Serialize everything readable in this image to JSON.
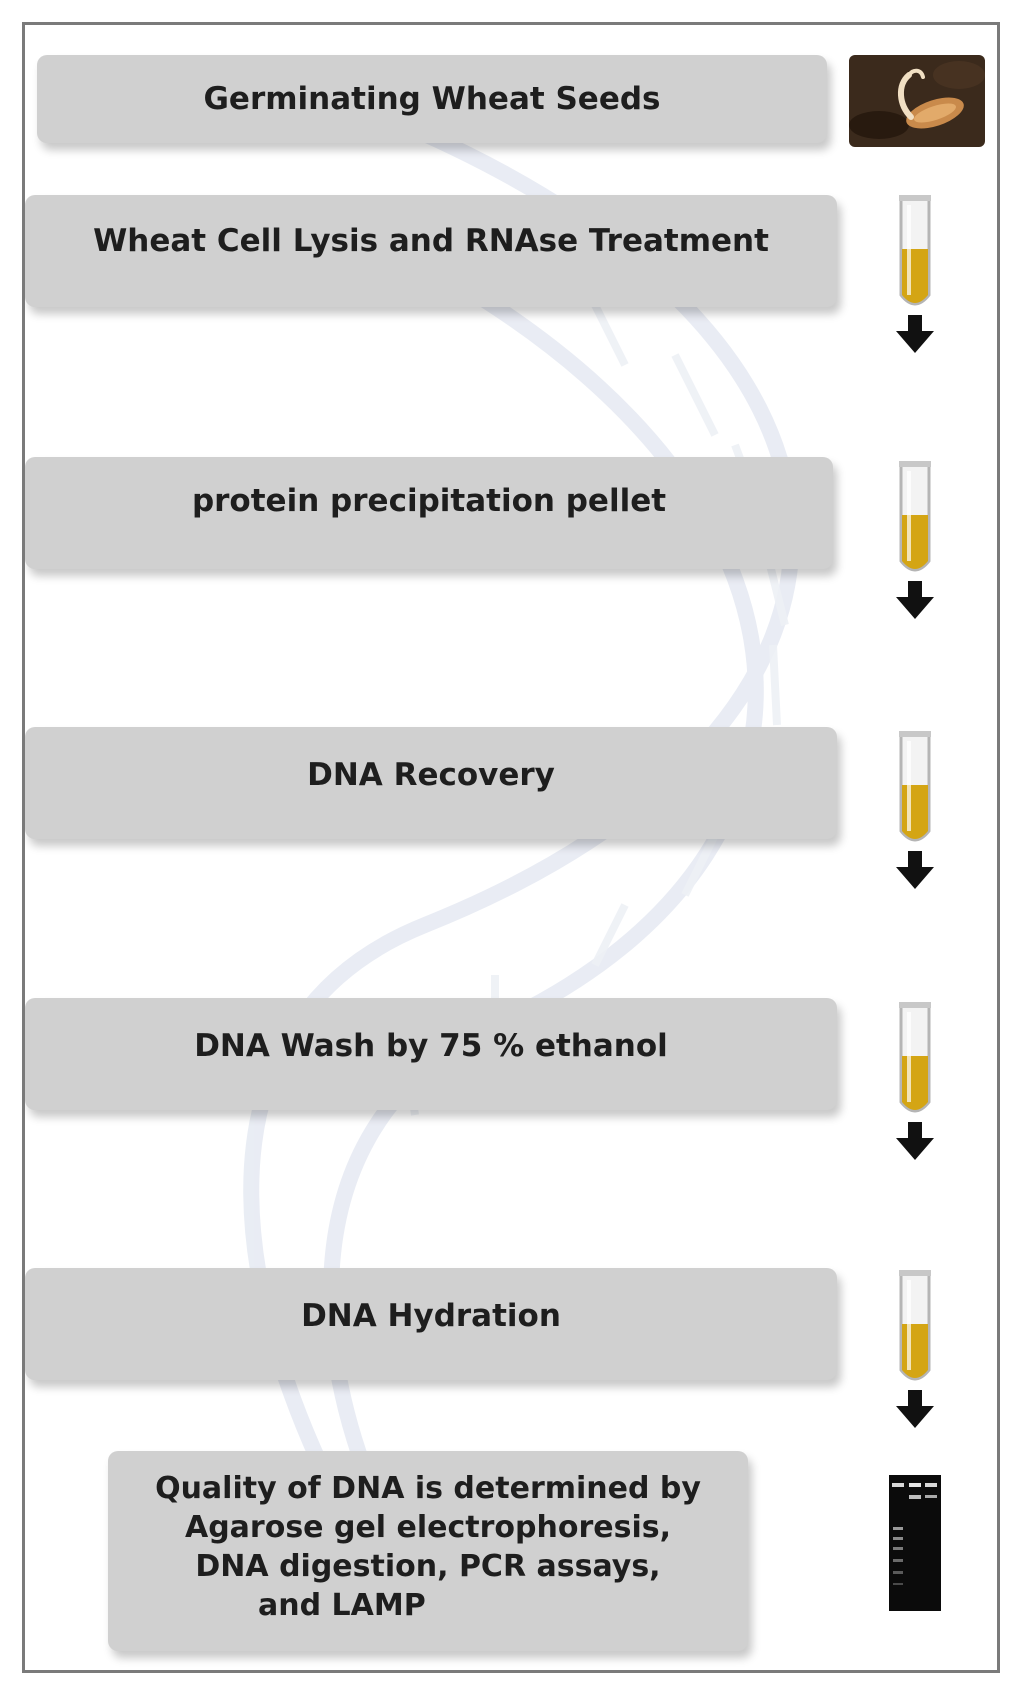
{
  "steps": [
    {
      "label": "Germinating Wheat Seeds"
    },
    {
      "label": "Wheat Cell Lysis and RNAse Treatment"
    },
    {
      "label": "protein precipitation pellet"
    },
    {
      "label": "DNA Recovery"
    },
    {
      "label": "DNA Wash by 75 % ethanol"
    },
    {
      "label": "DNA Hydration"
    },
    {
      "label_lines": [
        "Quality of DNA is determined by",
        "Agarose gel electrophoresis,",
        "DNA digestion, PCR assays,",
        "and LAMP"
      ]
    }
  ],
  "icons": {
    "seed": "germinating-seed-photo",
    "tube": "test-tube-yellow-liquid-icon",
    "arrow": "down-arrow-icon",
    "gel": "agarose-gel-image"
  },
  "colors": {
    "box_fill": "#d0d0d0",
    "text": "#1e1e1e",
    "tube_liquid": "#d4a514",
    "arrow": "#111111",
    "frame": "#7a7a7a"
  }
}
